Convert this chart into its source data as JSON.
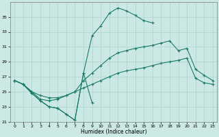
{
  "xlabel": "Humidex (Indice chaleur)",
  "bg_color": "#cce8e4",
  "grid_color": "#aad4ce",
  "line_color": "#1a7a6a",
  "ylim": [
    21,
    37
  ],
  "yticks": [
    21,
    23,
    25,
    27,
    29,
    31,
    33,
    35
  ],
  "xlim": [
    -0.5,
    23.5
  ],
  "xticks": [
    0,
    1,
    2,
    3,
    4,
    5,
    6,
    7,
    8,
    9,
    10,
    11,
    12,
    13,
    14,
    15,
    16,
    17,
    18,
    19,
    20,
    21,
    22,
    23
  ],
  "line1_x": [
    0,
    1,
    2,
    3,
    4,
    5,
    6,
    7,
    8,
    9
  ],
  "line1_y": [
    26.5,
    26.0,
    24.8,
    23.8,
    23.0,
    22.8,
    22.0,
    21.2,
    27.5,
    23.5
  ],
  "line2_x": [
    0,
    1,
    2,
    3,
    4,
    5,
    6,
    7,
    8,
    9,
    10,
    11,
    12,
    13,
    14,
    15,
    16,
    17,
    18,
    19,
    20,
    21,
    22,
    23
  ],
  "line2_y": [
    26.5,
    26.0,
    25.0,
    24.5,
    24.2,
    24.2,
    24.5,
    25.0,
    25.5,
    26.0,
    26.5,
    27.0,
    27.5,
    27.8,
    28.0,
    28.2,
    28.5,
    28.8,
    29.0,
    29.2,
    29.5,
    26.8,
    26.2,
    26.0
  ],
  "line3_x": [
    0,
    1,
    2,
    3,
    4,
    5,
    6,
    7,
    8,
    9,
    10,
    11,
    12,
    13,
    14,
    15,
    16,
    17,
    18,
    19,
    20,
    21,
    22,
    23
  ],
  "line3_y": [
    26.5,
    26.0,
    25.0,
    24.0,
    23.8,
    24.0,
    24.5,
    25.0,
    26.5,
    27.5,
    28.5,
    29.5,
    30.2,
    30.5,
    30.8,
    31.0,
    31.2,
    31.5,
    31.8,
    30.5,
    30.8,
    28.0,
    27.2,
    26.5
  ],
  "line4_x": [
    0,
    1,
    2,
    3,
    4,
    5,
    6,
    7,
    8,
    9,
    10,
    11,
    12,
    13,
    14,
    15,
    16
  ],
  "line4_y": [
    26.5,
    26.0,
    24.8,
    23.8,
    23.0,
    22.8,
    22.0,
    21.2,
    27.5,
    32.5,
    33.8,
    35.5,
    36.2,
    35.8,
    35.2,
    34.5,
    34.2
  ]
}
